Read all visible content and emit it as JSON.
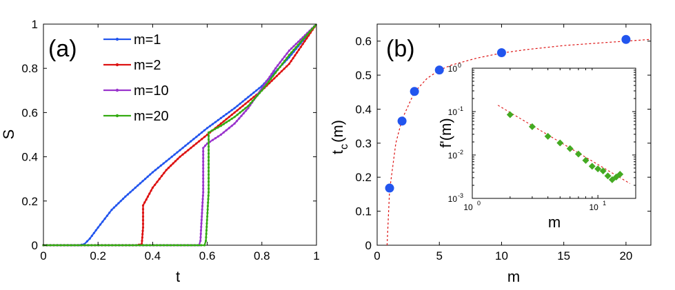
{
  "chart_data": [
    {
      "panel": "(a)",
      "type": "line",
      "xlabel": "t",
      "ylabel": "S",
      "xlim": [
        0,
        1
      ],
      "ylim": [
        0,
        1
      ],
      "xticks": [
        "0",
        "0.2",
        "0.4",
        "0.6",
        "0.8",
        "1"
      ],
      "yticks": [
        "0",
        "0.2",
        "0.4",
        "0.6",
        "0.8",
        "1"
      ],
      "legend_position": "top-left",
      "series": [
        {
          "name": "m=1",
          "color": "#2255ee",
          "x": [
            0,
            0.13,
            0.15,
            0.17,
            0.2,
            0.25,
            0.3,
            0.4,
            0.5,
            0.6,
            0.7,
            0.8,
            0.9,
            1.0
          ],
          "y": [
            0,
            0,
            0.005,
            0.03,
            0.08,
            0.16,
            0.22,
            0.33,
            0.43,
            0.53,
            0.62,
            0.72,
            0.85,
            1.0
          ]
        },
        {
          "name": "m=2",
          "color": "#dd1111",
          "x": [
            0,
            0.34,
            0.36,
            0.365,
            0.365,
            0.4,
            0.45,
            0.5,
            0.6,
            0.7,
            0.8,
            0.9,
            1.0
          ],
          "y": [
            0,
            0,
            0.005,
            0.08,
            0.18,
            0.26,
            0.34,
            0.4,
            0.5,
            0.6,
            0.7,
            0.82,
            1.0
          ]
        },
        {
          "name": "m=10",
          "color": "#9933cc",
          "x": [
            0,
            0.57,
            0.575,
            0.58,
            0.585,
            0.585,
            0.6,
            0.65,
            0.7,
            0.75,
            0.8,
            0.85,
            0.9,
            0.95,
            1.0
          ],
          "y": [
            0,
            0,
            0.02,
            0.13,
            0.24,
            0.44,
            0.46,
            0.5,
            0.55,
            0.62,
            0.71,
            0.8,
            0.88,
            0.94,
            1.0
          ]
        },
        {
          "name": "m=20",
          "color": "#33aa11",
          "x": [
            0,
            0.59,
            0.595,
            0.6,
            0.605,
            0.605,
            0.65,
            0.7,
            0.75,
            0.8,
            0.85,
            0.9,
            0.95,
            1.0
          ],
          "y": [
            0,
            0,
            0.02,
            0.13,
            0.24,
            0.51,
            0.54,
            0.58,
            0.63,
            0.7,
            0.78,
            0.86,
            0.93,
            1.0
          ]
        }
      ]
    },
    {
      "panel": "(b)",
      "type": "scatter",
      "xlabel": "m",
      "ylabel": "t",
      "ylabel_subscript": "c",
      "ylabel_suffix": "(m)",
      "xlim": [
        0,
        22
      ],
      "ylim": [
        0,
        0.65
      ],
      "xticks": [
        "0",
        "5",
        "10",
        "15",
        "20"
      ],
      "yticks": [
        "0",
        "0.1",
        "0.2",
        "0.3",
        "0.4",
        "0.5",
        "0.6"
      ],
      "marker_color": "#2255ee",
      "fit_color": "#dd1111",
      "points": {
        "x": [
          1,
          2,
          3,
          5,
          10,
          20
        ],
        "y": [
          0.168,
          0.365,
          0.452,
          0.515,
          0.566,
          0.605
        ]
      },
      "fit": {
        "x": [
          0.8,
          1,
          1.5,
          2,
          3,
          4,
          5,
          6,
          8,
          10,
          12,
          15,
          18,
          20,
          22
        ],
        "y": [
          0.0,
          0.16,
          0.3,
          0.37,
          0.45,
          0.49,
          0.515,
          0.53,
          0.55,
          0.565,
          0.575,
          0.587,
          0.595,
          0.6,
          0.605
        ]
      }
    },
    {
      "panel": "inset",
      "type": "scatter",
      "xscale": "log",
      "yscale": "log",
      "xlabel": "m",
      "ylabel": "f'(m)",
      "xlim": [
        1,
        20
      ],
      "ylim": [
        0.001,
        1
      ],
      "xticks": [
        {
          "base": "10",
          "exp": "0"
        },
        {
          "base": "10",
          "exp": "1"
        }
      ],
      "yticks": [
        {
          "base": "10",
          "exp": "0"
        },
        {
          "base": "10",
          "exp": "-1"
        },
        {
          "base": "10",
          "exp": "-2"
        },
        {
          "base": "10",
          "exp": "-3"
        }
      ],
      "marker_color": "#44aa22",
      "fit_color": "#dd1111",
      "points": {
        "x": [
          2,
          3,
          4,
          5,
          6,
          7,
          8,
          9,
          10,
          11,
          12,
          13,
          14,
          15
        ],
        "y": [
          0.085,
          0.045,
          0.027,
          0.019,
          0.014,
          0.0105,
          0.0075,
          0.0055,
          0.0048,
          0.0043,
          0.0033,
          0.0027,
          0.0031,
          0.0036
        ]
      },
      "fit": {
        "x": [
          1.6,
          18
        ],
        "y": [
          0.14,
          0.0022
        ]
      }
    }
  ]
}
